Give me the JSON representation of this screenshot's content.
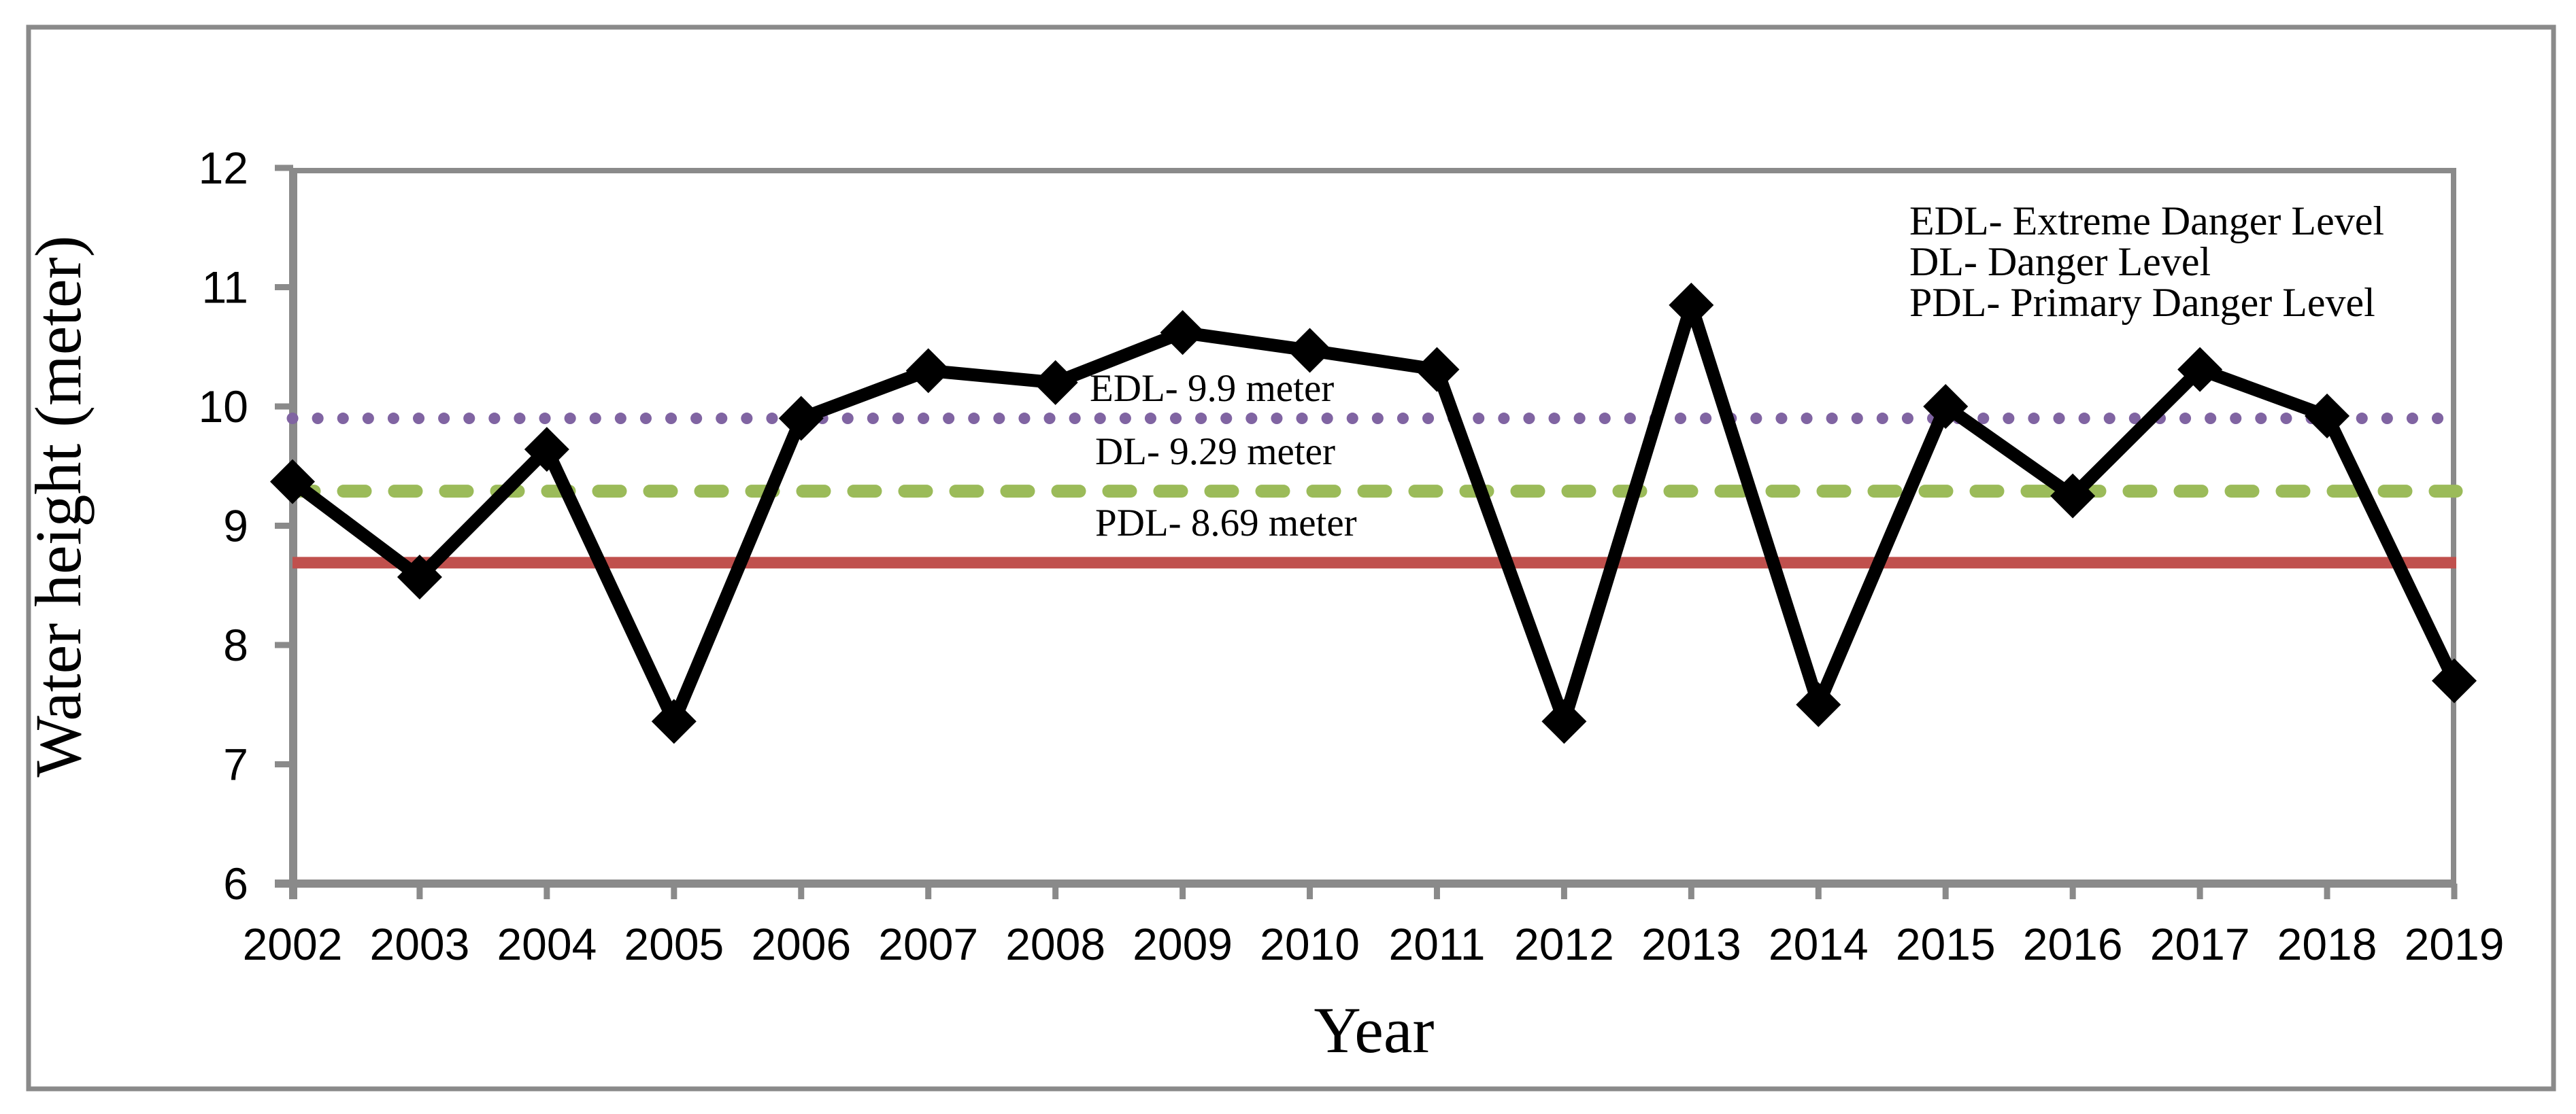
{
  "chart_data": {
    "type": "line",
    "title": "",
    "xlabel": "Year",
    "ylabel": "Water height (meter)",
    "ylim": [
      6,
      12
    ],
    "ytick_step": 1,
    "grid": false,
    "x": [
      "2002",
      "2003",
      "2004",
      "2005",
      "2006",
      "2007",
      "2008",
      "2009",
      "2010",
      "2011",
      "2012",
      "2013",
      "2014",
      "2015",
      "2016",
      "2017",
      "2018",
      "2019"
    ],
    "series": [
      {
        "name": "Water height",
        "color": "#000000",
        "marker": "diamond",
        "values": [
          9.37,
          8.57,
          9.64,
          7.36,
          9.9,
          10.3,
          10.2,
          10.62,
          10.47,
          10.31,
          7.36,
          10.85,
          7.5,
          10.0,
          9.25,
          10.31,
          9.92,
          7.7
        ]
      }
    ],
    "reference_lines": [
      {
        "id": "edl",
        "label": "EDL- 9.9 meter",
        "value": 9.9,
        "color": "#8064A2",
        "style": "dotted"
      },
      {
        "id": "dl",
        "label": "DL- 9.29 meter",
        "value": 9.29,
        "color": "#9BBB59",
        "style": "dashed"
      },
      {
        "id": "pdl",
        "label": "PDL- 8.69 meter",
        "value": 8.69,
        "color": "#C0504D",
        "style": "solid"
      }
    ],
    "legend": [
      "EDL- Extreme Danger Level",
      "DL- Danger Level",
      "PDL- Primary Danger Level"
    ],
    "legend_position": "top-right-inside",
    "axis_color": "#8A8A8A",
    "border_color": "#8A8A8A"
  }
}
